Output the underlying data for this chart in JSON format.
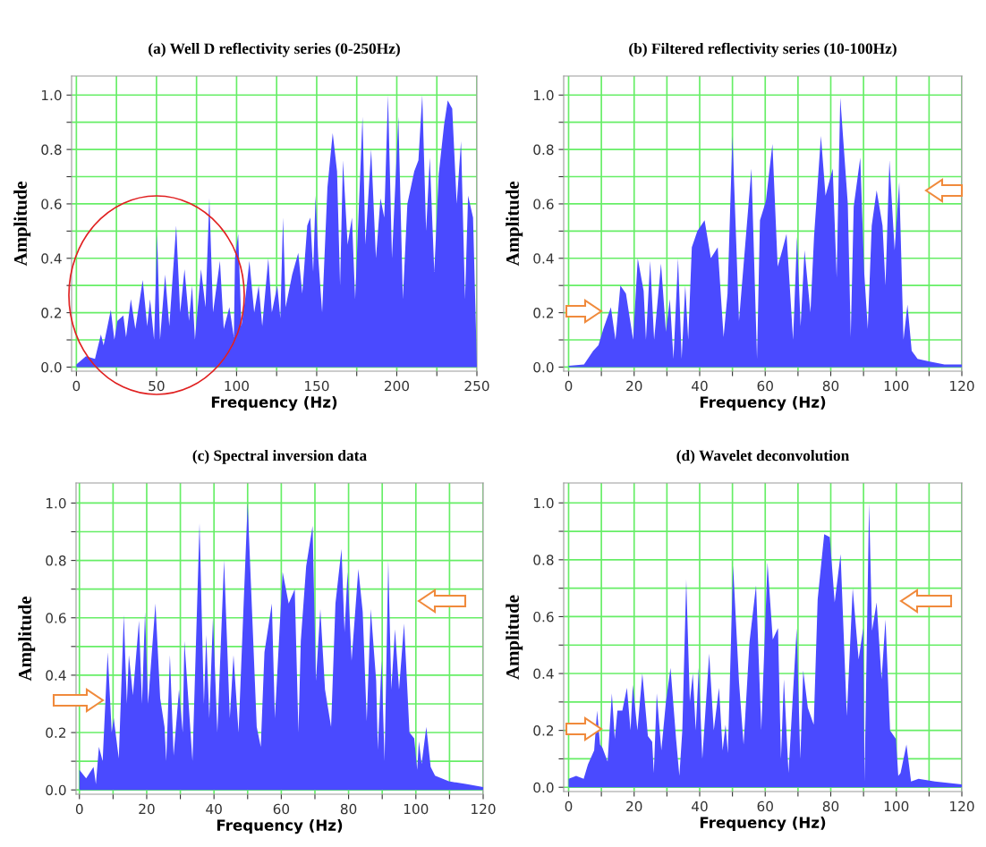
{
  "chart_data": [
    {
      "type": "area",
      "title": "(a) Well D reflectivity series (0-250Hz)",
      "xlabel": "Frequency (Hz)",
      "ylabel": "Amplitude",
      "color": "#4a4aff",
      "grid": true,
      "x": [
        0,
        6,
        11.6,
        15.3,
        17,
        21.5,
        23.7,
        25.6,
        29.3,
        31,
        34,
        36.8,
        41.4,
        44.2,
        46,
        48.5,
        50.4,
        52.2,
        55.4,
        58,
        62.3,
        64.8,
        67.5,
        70.3,
        72.2,
        74,
        77.8,
        80.6,
        83,
        85.3,
        89.6,
        92,
        95.5,
        98.3,
        99,
        101,
        103,
        105.8,
        108,
        111,
        113.8,
        116,
        119.8,
        122,
        125.4,
        127.3,
        129,
        130.6,
        134.7,
        138.5,
        141,
        144.1,
        146,
        147.8,
        149.3,
        151,
        153.4,
        156.7,
        160,
        162.7,
        164.6,
        166.4,
        169.3,
        172,
        174,
        178.6,
        180.4,
        184,
        187,
        189.8,
        192.2,
        194.5,
        197,
        201,
        203.8,
        206.6,
        210.9,
        213.5,
        215.9,
        218.3,
        220.6,
        223.4,
        226.2,
        229.5,
        231.8,
        234.6,
        237.4,
        240.1,
        242.6,
        244.5,
        247.6,
        249.5,
        250
      ],
      "values": [
        0.01,
        0.04,
        0.03,
        0.12,
        0.08,
        0.21,
        0.1,
        0.17,
        0.19,
        0.11,
        0.25,
        0.14,
        0.32,
        0.15,
        0.25,
        0.1,
        0.49,
        0.1,
        0.34,
        0.15,
        0.52,
        0.2,
        0.36,
        0.17,
        0.3,
        0.1,
        0.36,
        0.22,
        0.62,
        0.2,
        0.39,
        0.14,
        0.22,
        0.11,
        0.4,
        0.49,
        0.15,
        0.27,
        0.39,
        0.2,
        0.3,
        0.15,
        0.4,
        0.2,
        0.3,
        0.18,
        0.55,
        0.22,
        0.34,
        0.42,
        0.27,
        0.52,
        0.55,
        0.35,
        0.63,
        0.4,
        0.2,
        0.66,
        0.86,
        0.72,
        0.3,
        0.76,
        0.45,
        0.55,
        0.25,
        0.92,
        0.45,
        0.8,
        0.4,
        0.62,
        0.55,
        1.0,
        0.4,
        0.92,
        0.25,
        0.6,
        0.72,
        0.76,
        1.0,
        0.5,
        0.77,
        0.35,
        0.71,
        0.89,
        0.98,
        0.95,
        0.6,
        0.83,
        0.25,
        0.63,
        0.55,
        0.12,
        0.0
      ],
      "xlim": [
        -3,
        250
      ],
      "ylim": [
        -0.015,
        1.07
      ],
      "xticks": [
        0,
        {
          "value": 25,
          "label": null
        },
        50,
        {
          "value": 75,
          "label": null
        },
        100,
        {
          "value": 125,
          "label": null
        },
        150,
        {
          "value": 175,
          "label": null
        },
        200,
        {
          "value": 225,
          "label": null
        },
        250
      ],
      "yticks": [
        {
          "value": 0,
          "label": "0.0"
        },
        {
          "value": 0.1,
          "label": null
        },
        {
          "value": 0.2,
          "label": "0.2"
        },
        {
          "value": 0.3,
          "label": null
        },
        {
          "value": 0.4,
          "label": "0.4"
        },
        {
          "value": 0.5,
          "label": null
        },
        {
          "value": 0.6,
          "label": "0.6"
        },
        {
          "value": 0.7,
          "label": null
        },
        {
          "value": 0.8,
          "label": "0.8"
        },
        {
          "value": 0.9,
          "label": null
        },
        {
          "value": 1.0,
          "label": "1.0"
        }
      ]
    },
    {
      "type": "area",
      "title": "(b) Filtered reflectivity series (10-100Hz)",
      "xlabel": "Frequency (Hz)",
      "ylabel": "Amplitude",
      "color": "#4a4aff",
      "grid": true,
      "x": [
        0,
        4.7,
        7.5,
        9.1,
        10.6,
        12.9,
        14.3,
        15.8,
        17.5,
        19.7,
        21.1,
        22.9,
        23.6,
        24.9,
        26.1,
        28.2,
        29.7,
        30.9,
        32,
        33.4,
        34.5,
        35.6,
        36.5,
        37.6,
        39.3,
        41.5,
        43.4,
        45.5,
        47.3,
        48.5,
        50,
        52,
        55.8,
        57.5,
        58.4,
        60.2,
        62.2,
        63.8,
        65.2,
        66.5,
        68.5,
        69.7,
        70.8,
        72,
        73.8,
        74.9,
        77,
        78.4,
        80.6,
        81.8,
        82.9,
        85.2,
        86.1,
        87,
        89,
        90.2,
        91.3,
        92.5,
        94,
        95.8,
        96.7,
        97.9,
        99.5,
        100.9,
        102.2,
        103.4,
        104.7,
        106.5,
        110.2,
        114.7,
        120
      ],
      "values": [
        0.005,
        0.01,
        0.06,
        0.08,
        0.14,
        0.22,
        0.1,
        0.3,
        0.27,
        0.1,
        0.4,
        0.28,
        0.1,
        0.39,
        0.1,
        0.38,
        0.13,
        0.25,
        0.03,
        0.4,
        0.03,
        0.3,
        0.1,
        0.44,
        0.5,
        0.54,
        0.4,
        0.44,
        0.11,
        0.27,
        0.85,
        0.17,
        0.73,
        0.03,
        0.54,
        0.61,
        0.82,
        0.37,
        0.43,
        0.49,
        0.1,
        0.48,
        0.15,
        0.43,
        0.2,
        0.48,
        0.85,
        0.63,
        0.73,
        0.33,
        0.99,
        0.6,
        0.11,
        0.59,
        0.77,
        0.35,
        0.14,
        0.52,
        0.65,
        0.52,
        0.3,
        0.76,
        0.43,
        0.68,
        0.1,
        0.23,
        0.06,
        0.03,
        0.02,
        0.01,
        0.01
      ],
      "xlim": [
        -1.5,
        120
      ],
      "ylim": [
        -0.015,
        1.07
      ],
      "xticks": [
        0,
        {
          "value": 10,
          "label": null
        },
        20,
        {
          "value": 30,
          "label": null
        },
        40,
        {
          "value": 50,
          "label": null
        },
        60,
        {
          "value": 70,
          "label": null
        },
        80,
        {
          "value": 90,
          "label": null
        },
        100,
        {
          "value": 110,
          "label": null
        },
        120
      ],
      "yticks": [
        {
          "value": 0,
          "label": "0.0"
        },
        {
          "value": 0.1,
          "label": null
        },
        {
          "value": 0.2,
          "label": "0.2"
        },
        {
          "value": 0.3,
          "label": null
        },
        {
          "value": 0.4,
          "label": "0.4"
        },
        {
          "value": 0.5,
          "label": null
        },
        {
          "value": 0.6,
          "label": "0.6"
        },
        {
          "value": 0.7,
          "label": null
        },
        {
          "value": 0.8,
          "label": "0.8"
        },
        {
          "value": 0.9,
          "label": null
        },
        {
          "value": 1.0,
          "label": "1.0"
        }
      ]
    },
    {
      "type": "area",
      "title": "(c) Spectral inversion data",
      "xlabel": "Frequency (Hz)",
      "ylabel": "Amplitude",
      "color": "#4a4aff",
      "grid": true,
      "x": [
        0,
        2,
        4.2,
        4.9,
        5.8,
        6.9,
        8.4,
        9.6,
        10.2,
        11.7,
        13.2,
        14.1,
        14.7,
        15.9,
        17.7,
        18.6,
        19.5,
        20.4,
        22.6,
        24,
        25.3,
        25.8,
        26.9,
        28,
        29.6,
        30.7,
        31.2,
        33.6,
        35.7,
        37,
        37.7,
        38.6,
        39.7,
        41,
        43,
        44.7,
        45.8,
        47.3,
        50,
        52.7,
        53.9,
        55,
        57.2,
        58.1,
        60.4,
        62.2,
        64,
        65.1,
        65.8,
        67.4,
        69.3,
        70.3,
        71.6,
        73,
        74.8,
        76.1,
        77.9,
        78.8,
        79.7,
        80.9,
        82.9,
        84.2,
        85.4,
        86.6,
        88.2,
        88.7,
        89.8,
        90.7,
        91.8,
        92.7,
        93.8,
        95,
        96.5,
        98.1,
        99.5,
        100.4,
        100.9,
        101.7,
        103.1,
        104.4,
        105.7,
        109.8,
        115.2,
        120
      ],
      "values": [
        0.07,
        0.04,
        0.08,
        0.02,
        0.15,
        0.1,
        0.48,
        0.2,
        0.25,
        0.11,
        0.61,
        0.3,
        0.47,
        0.33,
        0.59,
        0.3,
        0.62,
        0.3,
        0.65,
        0.32,
        0.22,
        0.1,
        0.47,
        0.12,
        0.35,
        0.2,
        0.52,
        0.1,
        0.93,
        0.3,
        0.54,
        0.25,
        0.6,
        0.2,
        0.8,
        0.25,
        0.47,
        0.2,
        1.0,
        0.22,
        0.15,
        0.48,
        0.65,
        0.25,
        0.76,
        0.65,
        0.7,
        0.2,
        0.52,
        0.78,
        0.92,
        0.38,
        0.63,
        0.35,
        0.22,
        0.65,
        0.84,
        0.55,
        0.76,
        0.45,
        0.77,
        0.62,
        0.24,
        0.63,
        0.38,
        0.14,
        0.45,
        0.1,
        0.8,
        0.35,
        0.56,
        0.35,
        0.58,
        0.2,
        0.18,
        0.07,
        0.17,
        0.09,
        0.22,
        0.08,
        0.05,
        0.03,
        0.02,
        0.01
      ],
      "xlim": [
        -1,
        120
      ],
      "ylim": [
        -0.015,
        1.07
      ],
      "xticks": [
        0,
        {
          "value": 10,
          "label": null
        },
        20,
        {
          "value": 30,
          "label": null
        },
        40,
        {
          "value": 50,
          "label": null
        },
        60,
        {
          "value": 70,
          "label": null
        },
        80,
        {
          "value": 90,
          "label": null
        },
        100,
        {
          "value": 110,
          "label": null
        },
        120
      ],
      "yticks": [
        {
          "value": 0,
          "label": "0.0"
        },
        {
          "value": 0.1,
          "label": null
        },
        {
          "value": 0.2,
          "label": "0.2"
        },
        {
          "value": 0.3,
          "label": null
        },
        {
          "value": 0.4,
          "label": "0.4"
        },
        {
          "value": 0.5,
          "label": null
        },
        {
          "value": 0.6,
          "label": "0.6"
        },
        {
          "value": 0.7,
          "label": null
        },
        {
          "value": 0.8,
          "label": "0.8"
        },
        {
          "value": 0.9,
          "label": null
        },
        {
          "value": 1.0,
          "label": "1.0"
        }
      ]
    },
    {
      "type": "area",
      "title": "(d) Wavelet deconvolution",
      "xlabel": "Frequency (Hz)",
      "ylabel": "Amplitude",
      "color": "#4a4aff",
      "grid": true,
      "x": [
        0,
        2.3,
        4.6,
        5.9,
        7.8,
        8.7,
        9.6,
        10.3,
        11.9,
        13.2,
        14.1,
        14.9,
        16.4,
        17.8,
        18.9,
        19.6,
        21,
        22.5,
        24.2,
        25.5,
        26,
        26.9,
        28.3,
        29.7,
        31.1,
        32.8,
        33.8,
        34.7,
        35.9,
        37,
        37.9,
        38.8,
        39.7,
        40.8,
        42.9,
        44.3,
        45.9,
        47,
        47.9,
        48.6,
        50.2,
        52,
        53.4,
        55.2,
        57.2,
        58.8,
        60.7,
        62.3,
        63.9,
        64.8,
        65.7,
        67.1,
        69.6,
        70.7,
        71.6,
        73,
        74.8,
        76,
        78,
        79.7,
        81.2,
        83,
        84.9,
        86.7,
        88.5,
        89.9,
        90.3,
        91.7,
        92.6,
        94,
        95.5,
        96.7,
        98.1,
        99.9,
        100.6,
        101.3,
        103.1,
        104.5,
        106.8,
        111.8,
        120
      ],
      "values": [
        0.03,
        0.04,
        0.03,
        0.08,
        0.13,
        0.27,
        0.15,
        0.14,
        0.09,
        0.33,
        0.17,
        0.27,
        0.27,
        0.35,
        0.2,
        0.36,
        0.2,
        0.4,
        0.18,
        0.16,
        0.05,
        0.33,
        0.13,
        0.3,
        0.42,
        0.17,
        0.04,
        0.2,
        0.73,
        0.3,
        0.4,
        0.2,
        0.42,
        0.1,
        0.47,
        0.2,
        0.35,
        0.13,
        0.22,
        0.12,
        0.78,
        0.37,
        0.15,
        0.51,
        0.71,
        0.2,
        0.79,
        0.52,
        0.56,
        0.1,
        0.38,
        0.05,
        0.56,
        0.1,
        0.41,
        0.28,
        0.22,
        0.66,
        0.89,
        0.88,
        0.65,
        0.82,
        0.25,
        0.7,
        0.45,
        0.56,
        0.02,
        1.0,
        0.55,
        0.65,
        0.38,
        0.59,
        0.2,
        0.17,
        0.04,
        0.05,
        0.15,
        0.02,
        0.03,
        0.02,
        0.01
      ],
      "xlim": [
        -1.5,
        120
      ],
      "ylim": [
        -0.015,
        1.07
      ],
      "xticks": [
        0,
        {
          "value": 10,
          "label": null
        },
        20,
        {
          "value": 30,
          "label": null
        },
        40,
        {
          "value": 50,
          "label": null
        },
        60,
        {
          "value": 70,
          "label": null
        },
        80,
        {
          "value": 90,
          "label": null
        },
        100,
        {
          "value": 110,
          "label": null
        },
        120
      ],
      "yticks": [
        {
          "value": 0,
          "label": "0.0"
        },
        {
          "value": 0.1,
          "label": null
        },
        {
          "value": 0.2,
          "label": "0.2"
        },
        {
          "value": 0.3,
          "label": null
        },
        {
          "value": 0.4,
          "label": "0.4"
        },
        {
          "value": 0.5,
          "label": null
        },
        {
          "value": 0.6,
          "label": "0.6"
        },
        {
          "value": 0.7,
          "label": null
        },
        {
          "value": 0.8,
          "label": "0.8"
        },
        {
          "value": 0.9,
          "label": null
        },
        {
          "value": 1.0,
          "label": "1.0"
        }
      ]
    }
  ]
}
